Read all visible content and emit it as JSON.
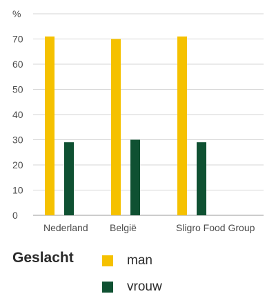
{
  "chart_data": {
    "type": "bar",
    "unit_label": "%",
    "categories": [
      "Nederland",
      "België",
      "Sligro Food Group"
    ],
    "series": [
      {
        "name": "man",
        "values": [
          71,
          70,
          71
        ],
        "color": "#f5c100"
      },
      {
        "name": "vrouw",
        "values": [
          29,
          30,
          29
        ],
        "color": "#0f5132"
      }
    ],
    "ylim": [
      0,
      80
    ],
    "yticks": [
      0,
      10,
      20,
      30,
      40,
      50,
      60,
      70
    ],
    "grid": true,
    "legend_position": "bottom-left"
  },
  "legend": {
    "title": "Geslacht",
    "items": [
      {
        "label": "man",
        "color": "#f5c100"
      },
      {
        "label": "vrouw",
        "color": "#0f5132"
      }
    ]
  }
}
